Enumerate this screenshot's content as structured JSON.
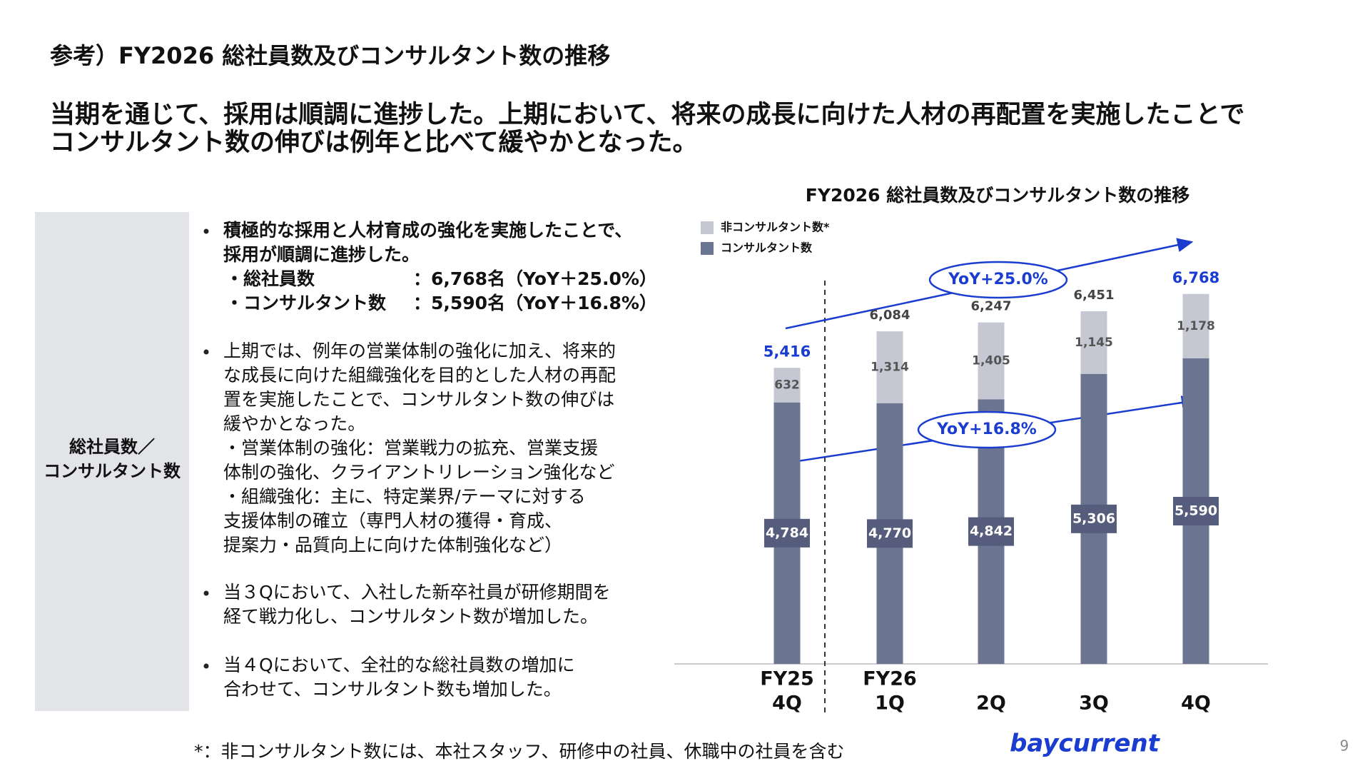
{
  "header": {
    "title": "参考）FY2026 総社員数及びコンサルタント数の推移",
    "lead": [
      "当期を通じて、採用は順調に進捗した。上期において、将来の成長に向けた人材の再配置を実施したことで",
      "コンサルタント数の伸びは例年と比べて緩やかとなった。"
    ]
  },
  "sidebar": {
    "label": [
      "総社員数／",
      "コンサルタント数"
    ]
  },
  "bullets": [
    {
      "lines": [
        "積極的な採用と人材育成の強化を実施したことで、",
        "採用が順調に進捗した。"
      ],
      "items": [
        {
          "label": "・総社員数",
          "value": "：6,768名（YoY＋25.0%）"
        },
        {
          "label": "・コンサルタント数",
          "value": "：5,590名（YoY＋16.8%）"
        }
      ]
    },
    {
      "lines": [
        "上期では、例年の営業体制の強化に加え、将来的",
        "な成長に向けた組織強化を目的とした人材の再配",
        "置を実施したことで、コンサルタント数の伸びは",
        "緩やかとなった。",
        "・営業体制の強化：営業戦力の拡充、営業支援",
        "体制の強化、クライアントリレーション強化など",
        "・組織強化：主に、特定業界/テーマに対する",
        "支援体制の確立（専門人材の獲得・育成、",
        "提案力・品質向上に向けた体制強化など）"
      ]
    },
    {
      "lines": [
        "当３Qにおいて、入社した新卒社員が研修期間を",
        "経て戦力化し、コンサルタント数が増加した。"
      ]
    },
    {
      "lines": [
        "当４Qにおいて、全社的な総社員数の増加に",
        "合わせて、コンサルタント数も増加した。"
      ]
    }
  ],
  "footnote": "*：非コンサルタント数には、本社スタッフ、研修中の社員、休職中の社員を含む",
  "logo": "baycurrent",
  "page_number": "9",
  "chart_data": {
    "type": "stacked-bar",
    "title": "FY2026 総社員数及びコンサルタント数の推移",
    "categories": [
      [
        "FY25",
        "4Q"
      ],
      [
        "FY26",
        "1Q"
      ],
      [
        "2Q"
      ],
      [
        "3Q"
      ],
      [
        "4Q"
      ]
    ],
    "series": [
      {
        "name": "コンサルタント数",
        "color": "#6b7491",
        "values": [
          4784,
          4770,
          4842,
          5306,
          5590
        ],
        "value_labels": [
          "4,784",
          "4,770",
          "4,842",
          "5,306",
          "5,590"
        ]
      },
      {
        "name": "非コンサルタント数*",
        "color": "#c5c8d3",
        "values": [
          632,
          1314,
          1405,
          1145,
          1178
        ],
        "value_labels": [
          "632",
          "1,314",
          "1,405",
          "1,145",
          "1,178"
        ]
      }
    ],
    "totals": [
      5416,
      6084,
      6247,
      6451,
      6768
    ],
    "total_labels": [
      "5,416",
      "6,084",
      "6,247",
      "6,451",
      "6,768"
    ],
    "total_colors": [
      "#1a3ccf",
      "#444444",
      "#444444",
      "#444444",
      "#1a3ccf"
    ],
    "ylim": [
      0,
      7000
    ],
    "annotations": [
      "YoY+25.0%",
      "YoY+16.8%"
    ]
  }
}
